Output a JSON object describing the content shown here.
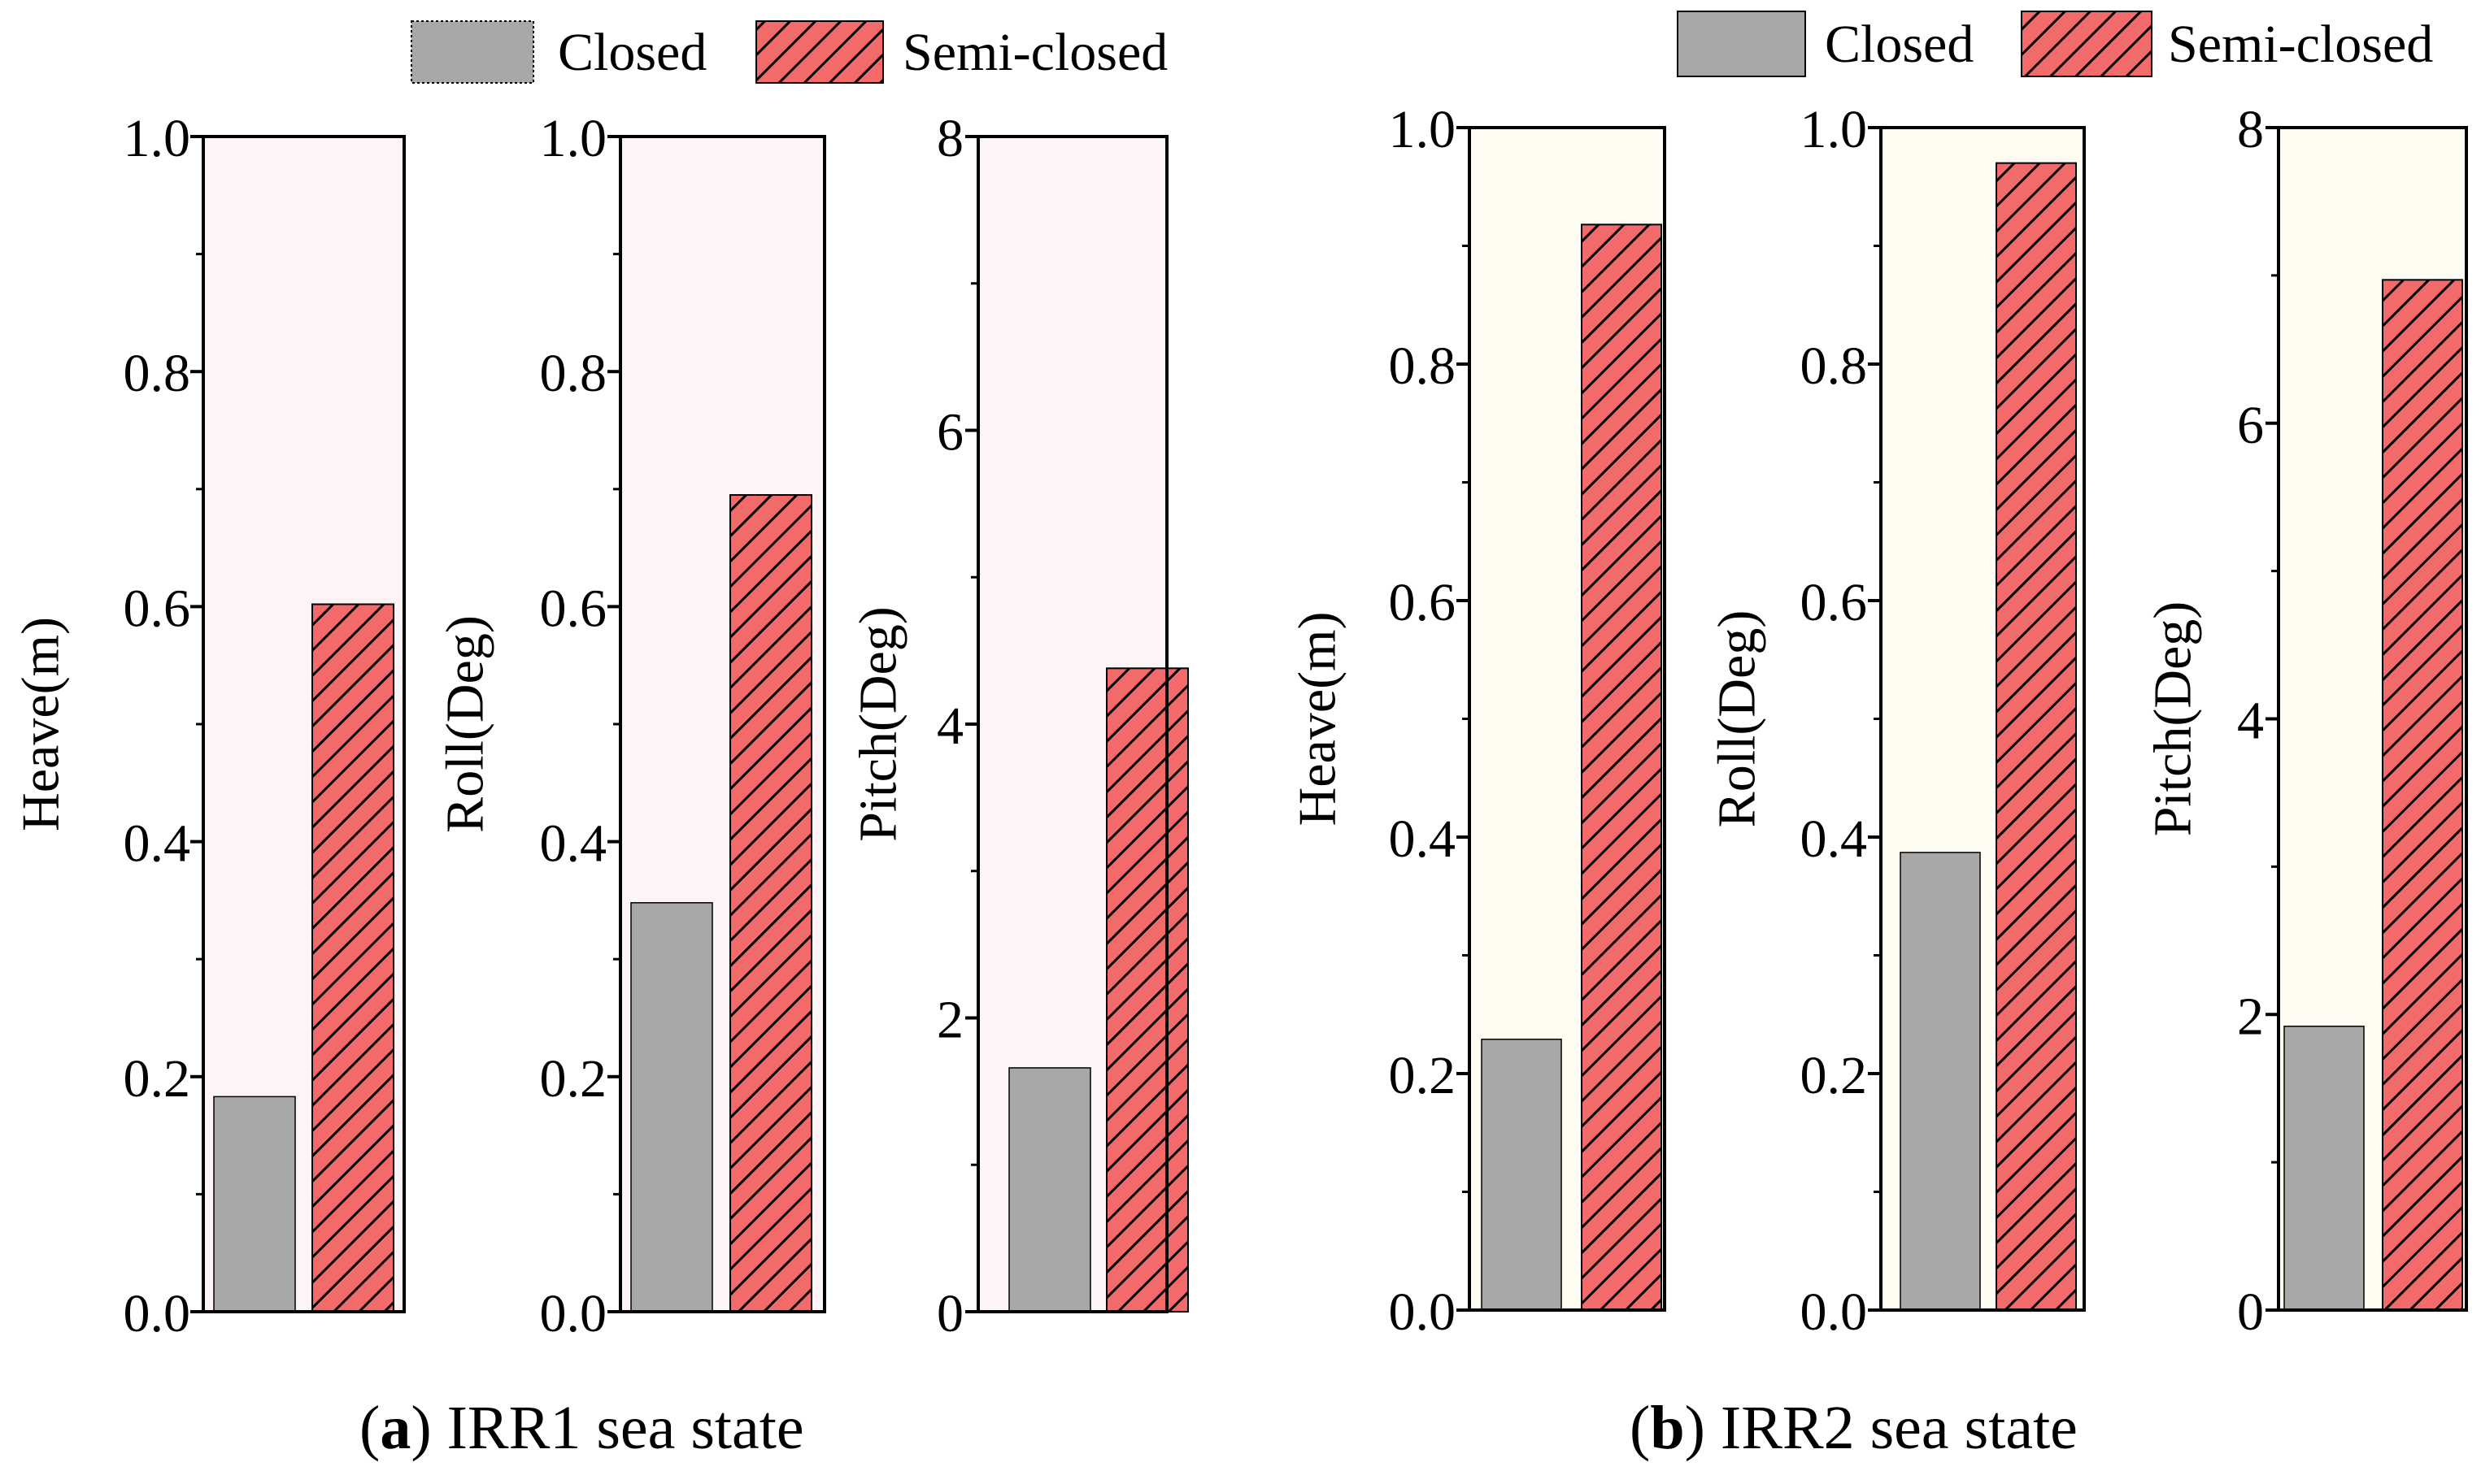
{
  "panels": [
    {
      "legend": {
        "closed_label": "Closed",
        "semi_label": "Semi-closed"
      },
      "caption": {
        "letter": "a",
        "text": " IRR1 sea state"
      },
      "plot_bg": "#fdf5f5"
    },
    {
      "legend": {
        "closed_label": "Closed",
        "semi_label": "Semi-closed"
      },
      "caption": {
        "letter": "b",
        "text": " IRR2 sea state"
      },
      "plot_bg": "#fffdf1"
    }
  ],
  "colors": {
    "closed": "#a8a8a8",
    "semi": "#f26a6a",
    "hatch": "#000000",
    "axis": "#000000"
  },
  "chart_data": [
    {
      "type": "bar",
      "panel": "a",
      "categories": [
        "Closed",
        "Semi-closed"
      ],
      "values": [
        0.183,
        0.602
      ],
      "ylabel": "Heave(m)",
      "ylim": [
        0,
        1.0
      ],
      "yticks": [
        0.0,
        0.2,
        0.4,
        0.6,
        0.8,
        1.0
      ],
      "ytick_labels": [
        "0.0",
        "0.2",
        "0.4",
        "0.6",
        "0.8",
        "1.0"
      ]
    },
    {
      "type": "bar",
      "panel": "a",
      "categories": [
        "Closed",
        "Semi-closed"
      ],
      "values": [
        0.348,
        0.695
      ],
      "ylabel": "Roll(Deg)",
      "ylim": [
        0,
        1.0
      ],
      "yticks": [
        0.0,
        0.2,
        0.4,
        0.6,
        0.8,
        1.0
      ],
      "ytick_labels": [
        "0.0",
        "0.2",
        "0.4",
        "0.6",
        "0.8",
        "1.0"
      ]
    },
    {
      "type": "bar",
      "panel": "a",
      "categories": [
        "Closed",
        "Semi-closed"
      ],
      "values": [
        1.66,
        4.38
      ],
      "ylabel": "Pitch(Deg)",
      "ylim": [
        0,
        8
      ],
      "yticks": [
        0,
        2,
        4,
        6,
        8
      ],
      "ytick_labels": [
        "0",
        "2",
        "4",
        "6",
        "8"
      ]
    },
    {
      "type": "bar",
      "panel": "b",
      "categories": [
        "Closed",
        "Semi-closed"
      ],
      "values": [
        0.229,
        0.918
      ],
      "ylabel": "Heave(m)",
      "ylim": [
        0,
        1.0
      ],
      "yticks": [
        0.0,
        0.2,
        0.4,
        0.6,
        0.8,
        1.0
      ],
      "ytick_labels": [
        "0.0",
        "0.2",
        "0.4",
        "0.6",
        "0.8",
        "1.0"
      ]
    },
    {
      "type": "bar",
      "panel": "b",
      "categories": [
        "Closed",
        "Semi-closed"
      ],
      "values": [
        0.387,
        0.97
      ],
      "ylabel": "Roll(Deg)",
      "ylim": [
        0,
        1.0
      ],
      "yticks": [
        0.0,
        0.2,
        0.4,
        0.6,
        0.8,
        1.0
      ],
      "ytick_labels": [
        "0.0",
        "0.2",
        "0.4",
        "0.6",
        "0.8",
        "1.0"
      ]
    },
    {
      "type": "bar",
      "panel": "b",
      "categories": [
        "Closed",
        "Semi-closed"
      ],
      "values": [
        1.92,
        6.97
      ],
      "ylabel": "Pitch(Deg)",
      "ylim": [
        0,
        8
      ],
      "yticks": [
        0,
        2,
        4,
        6,
        8
      ],
      "ytick_labels": [
        "0",
        "2",
        "4",
        "6",
        "8"
      ]
    }
  ]
}
